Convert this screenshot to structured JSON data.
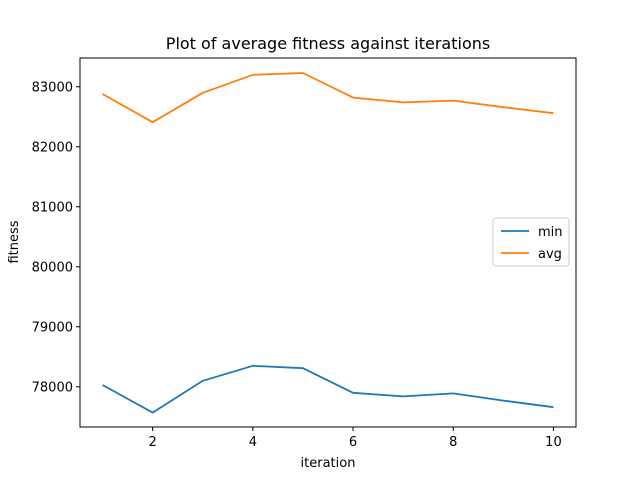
{
  "chart_data": {
    "type": "line",
    "title": "Plot of average fitness against iterations",
    "xlabel": "iteration",
    "ylabel": "fitness",
    "x": [
      1,
      2,
      3,
      4,
      5,
      6,
      7,
      8,
      9,
      10
    ],
    "xlim": [
      0.55,
      10.45
    ],
    "ylim": [
      77330,
      83480
    ],
    "xticks": [
      2,
      4,
      6,
      8,
      10
    ],
    "yticks": [
      78000,
      79000,
      80000,
      81000,
      82000,
      83000
    ],
    "grid": false,
    "legend": "center-right",
    "series": [
      {
        "name": "min",
        "color": "#1f77b4",
        "values": [
          78030,
          77570,
          78100,
          78350,
          78310,
          77900,
          77840,
          77890,
          77770,
          77660
        ]
      },
      {
        "name": "avg",
        "color": "#ff7f0e",
        "values": [
          82880,
          82410,
          82900,
          83200,
          83230,
          82820,
          82740,
          82770,
          82660,
          82560
        ]
      }
    ]
  }
}
